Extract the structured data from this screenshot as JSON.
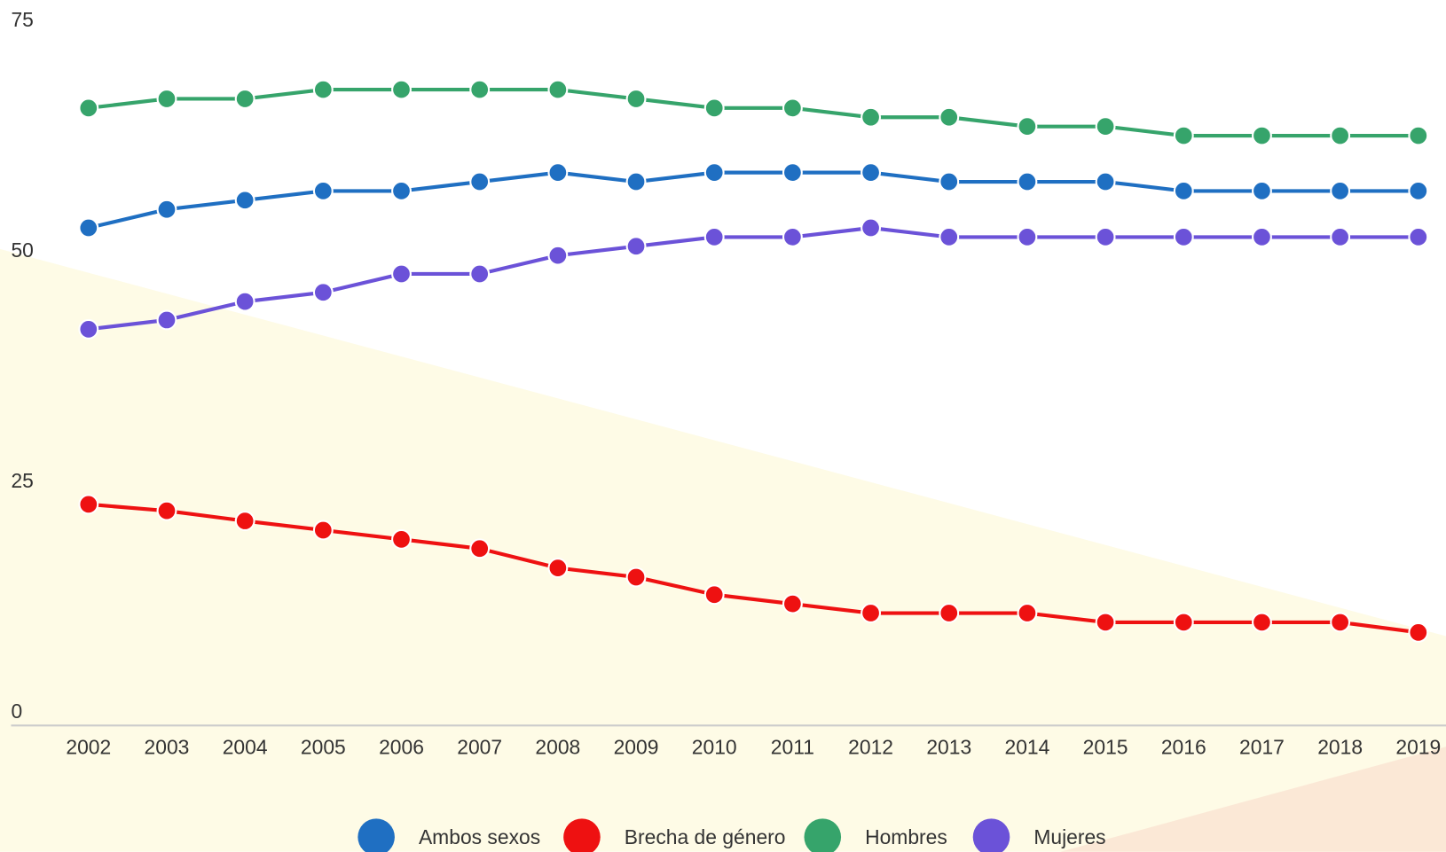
{
  "chart_data": {
    "type": "line",
    "x": [
      "2002",
      "2003",
      "2004",
      "2005",
      "2006",
      "2007",
      "2008",
      "2009",
      "2010",
      "2011",
      "2012",
      "2013",
      "2014",
      "2015",
      "2016",
      "2017",
      "2018",
      "2019"
    ],
    "series": [
      {
        "name": "Ambos sexos",
        "color": "#1f6fc2",
        "values": [
          54,
          56,
          57,
          58,
          58,
          59,
          60,
          59,
          60,
          60,
          60,
          59,
          59,
          59,
          58,
          58,
          58,
          58
        ]
      },
      {
        "name": "Brecha de género",
        "color": "#ee1111",
        "values": [
          24,
          23.3,
          22.2,
          21.2,
          20.2,
          19.2,
          17.1,
          16.1,
          14.2,
          13.2,
          12.2,
          12.2,
          12.2,
          11.2,
          11.2,
          11.2,
          11.2,
          10.1
        ]
      },
      {
        "name": "Hombres",
        "color": "#36a46b",
        "values": [
          67,
          68,
          68,
          69,
          69,
          69,
          69,
          68,
          67,
          67,
          66,
          66,
          65,
          65,
          64,
          64,
          64,
          64
        ]
      },
      {
        "name": "Mujeres",
        "color": "#6b52d8",
        "values": [
          43,
          44,
          46,
          47,
          49,
          49,
          51,
          52,
          53,
          53,
          54,
          53,
          53,
          53,
          53,
          53,
          53,
          53
        ]
      }
    ],
    "ylim": [
      0,
      75
    ],
    "yticks": [
      0,
      25,
      50,
      75
    ],
    "grid": false
  }
}
